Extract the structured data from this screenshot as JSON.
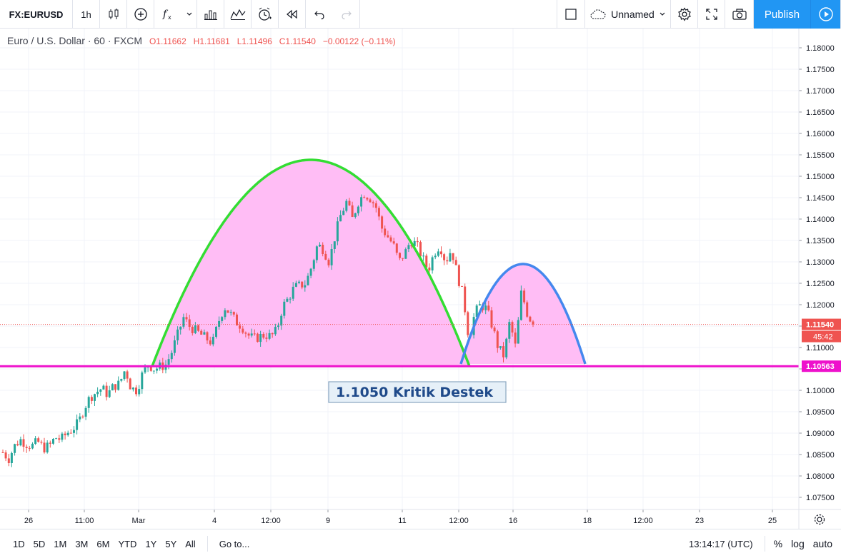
{
  "toolbar": {
    "symbol": "FX:EURUSD",
    "interval": "1h",
    "layout_name": "Unnamed",
    "publish_label": "Publish",
    "icons": [
      "candles-icon",
      "plus-circle-icon",
      "indicators-icon",
      "chevron-down-icon",
      "bar-chart-icon",
      "compare-icon",
      "alert-icon",
      "replay-icon",
      "undo-icon",
      "redo-icon",
      "square-icon",
      "cloud-icon",
      "gear-icon",
      "fullscreen-icon",
      "camera-icon",
      "play-icon"
    ]
  },
  "legend": {
    "title": "Euro / U.S. Dollar · 60 · FXCM",
    "open": "O1.11662",
    "high": "H1.11681",
    "low": "L1.11496",
    "close": "C1.11540",
    "change": "−0.00122 (−0.11%)"
  },
  "chart_data": {
    "type": "candlestick",
    "y_ticks": [
      "1.18000",
      "1.17500",
      "1.17000",
      "1.16500",
      "1.16000",
      "1.15500",
      "1.15000",
      "1.14500",
      "1.14000",
      "1.13500",
      "1.13000",
      "1.12500",
      "1.12000",
      "1.11500",
      "1.11000",
      "1.10500",
      "1.10000",
      "1.09500",
      "1.09000",
      "1.08500",
      "1.08000",
      "1.07500"
    ],
    "ylim": [
      1.0725,
      1.1825
    ],
    "x_ticks": [
      "26",
      "11:00",
      "Mar",
      "4",
      "12:00",
      "9",
      "11",
      "12:00",
      "16",
      "18",
      "12:00",
      "23",
      "25"
    ],
    "last_price": "1.11540",
    "countdown": "45:42",
    "support_price": "1.10563",
    "annotation": "1.1050 Kritik Destek",
    "colors": {
      "up": "#26a69a",
      "down": "#ef5350",
      "arc_fill": "#ffbdf5",
      "arc1_stroke": "#33dd33",
      "arc2_stroke": "#4488ee",
      "support_line": "#ee11cc",
      "last_price_bg": "#ef5350"
    },
    "series": [
      {
        "name": "",
        "price_path": [
          1.0855,
          1.084,
          1.087,
          1.0885,
          1.0875,
          1.087,
          1.088,
          1.0865,
          1.087,
          1.089,
          1.0885,
          1.09,
          1.091,
          1.0925,
          1.096,
          1.0985,
          1.0995,
          1.1005,
          1.099,
          1.101,
          1.1015,
          1.105,
          1.1005,
          1.1,
          1.104,
          1.106,
          1.105,
          1.1055,
          1.106,
          1.109,
          1.113,
          1.117,
          1.115,
          1.114,
          1.113,
          1.112,
          1.111,
          1.116,
          1.1195,
          1.118,
          1.116,
          1.115,
          1.113,
          1.112,
          1.1125,
          1.113,
          1.1125,
          1.114,
          1.1195,
          1.1215,
          1.124,
          1.1245,
          1.125,
          1.129,
          1.134,
          1.133,
          1.13,
          1.136,
          1.141,
          1.144,
          1.14,
          1.144,
          1.146,
          1.145,
          1.143,
          1.138,
          1.136,
          1.134,
          1.13,
          1.132,
          1.135,
          1.134,
          1.131,
          1.128,
          1.132,
          1.134,
          1.13,
          1.133,
          1.127,
          1.122,
          1.112,
          1.118,
          1.12,
          1.119,
          1.115,
          1.11,
          1.108,
          1.116,
          1.11,
          1.123,
          1.118,
          1.1154
        ]
      }
    ]
  },
  "bottom_bar": {
    "ranges": [
      "1D",
      "5D",
      "1M",
      "3M",
      "6M",
      "YTD",
      "1Y",
      "5Y",
      "All"
    ],
    "goto": "Go to...",
    "time": "13:14:17 (UTC)",
    "percent": "%",
    "log": "log",
    "auto": "auto"
  }
}
